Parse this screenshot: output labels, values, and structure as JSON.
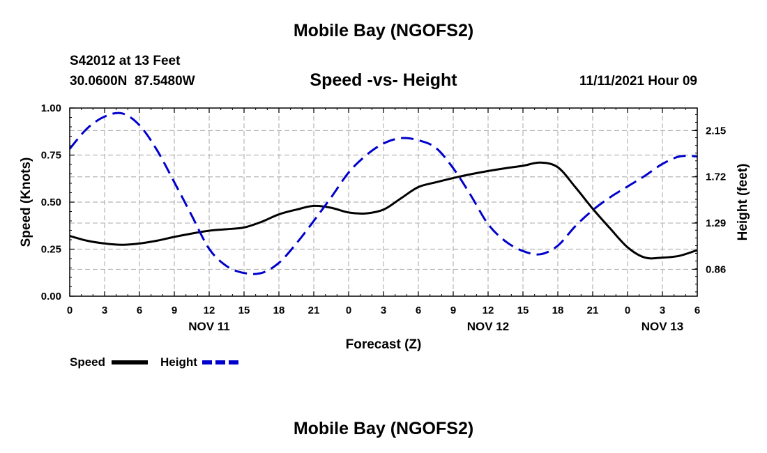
{
  "header": {
    "top_title": "Mobile Bay (NGOFS2)",
    "station": "S42012 at 13 Feet",
    "coords": "30.0600N  87.5480W",
    "plot_title": "Speed -vs- Height",
    "datetime": "11/11/2021 Hour 09"
  },
  "footer": {
    "bottom_title": "Mobile Bay (NGOFS2)"
  },
  "chart_data": {
    "type": "line",
    "title": "Speed -vs- Height",
    "xlabel": "Forecast (Z)",
    "ylabel_left": "Speed (Knots)",
    "ylabel_right": "Height (feet)",
    "x_range_hours": [
      0,
      54
    ],
    "ylim_left": [
      0,
      1.0
    ],
    "ylim_right": [
      0.61,
      2.36
    ],
    "x_ticks": [
      {
        "h": 0,
        "label": "0"
      },
      {
        "h": 3,
        "label": "3"
      },
      {
        "h": 6,
        "label": "6"
      },
      {
        "h": 9,
        "label": "9"
      },
      {
        "h": 12,
        "label": "12"
      },
      {
        "h": 15,
        "label": "15"
      },
      {
        "h": 18,
        "label": "18"
      },
      {
        "h": 21,
        "label": "21"
      },
      {
        "h": 24,
        "label": "0"
      },
      {
        "h": 27,
        "label": "3"
      },
      {
        "h": 30,
        "label": "6"
      },
      {
        "h": 33,
        "label": "9"
      },
      {
        "h": 36,
        "label": "12"
      },
      {
        "h": 39,
        "label": "15"
      },
      {
        "h": 42,
        "label": "18"
      },
      {
        "h": 45,
        "label": "21"
      },
      {
        "h": 48,
        "label": "0"
      },
      {
        "h": 51,
        "label": "3"
      },
      {
        "h": 54,
        "label": "6"
      }
    ],
    "date_labels": [
      {
        "h": 12,
        "label": "NOV 11"
      },
      {
        "h": 36,
        "label": "NOV 12"
      },
      {
        "h": 51,
        "label": "NOV 13"
      }
    ],
    "y_ticks_left": [
      "0.00",
      "0.25",
      "0.50",
      "0.75",
      "1.00"
    ],
    "y_ticks_right": [
      "0.86",
      "1.29",
      "1.72",
      "2.15"
    ],
    "grid": true,
    "legend": {
      "position": "bottom-left",
      "speed_label": "Speed",
      "height_label": "Height"
    },
    "series": [
      {
        "name": "Speed",
        "axis": "left",
        "color": "#000000",
        "dash": "solid",
        "points": [
          [
            0,
            0.32
          ],
          [
            1.5,
            0.295
          ],
          [
            3,
            0.28
          ],
          [
            4.5,
            0.273
          ],
          [
            6,
            0.28
          ],
          [
            7.5,
            0.295
          ],
          [
            9,
            0.315
          ],
          [
            10.5,
            0.333
          ],
          [
            12,
            0.348
          ],
          [
            13.5,
            0.356
          ],
          [
            15,
            0.365
          ],
          [
            16.5,
            0.395
          ],
          [
            18,
            0.435
          ],
          [
            19.5,
            0.46
          ],
          [
            21,
            0.48
          ],
          [
            22.5,
            0.47
          ],
          [
            24,
            0.445
          ],
          [
            25.5,
            0.44
          ],
          [
            27,
            0.46
          ],
          [
            28.5,
            0.52
          ],
          [
            30,
            0.58
          ],
          [
            31.5,
            0.605
          ],
          [
            33,
            0.628
          ],
          [
            34.5,
            0.648
          ],
          [
            36,
            0.665
          ],
          [
            37.5,
            0.68
          ],
          [
            39,
            0.693
          ],
          [
            40.5,
            0.71
          ],
          [
            42,
            0.685
          ],
          [
            43.5,
            0.58
          ],
          [
            45,
            0.465
          ],
          [
            46.5,
            0.36
          ],
          [
            48,
            0.26
          ],
          [
            49.5,
            0.205
          ],
          [
            51,
            0.205
          ],
          [
            52.5,
            0.215
          ],
          [
            54,
            0.245
          ]
        ]
      },
      {
        "name": "Height",
        "axis": "right",
        "color": "#0000cc",
        "dash": "dashed",
        "points": [
          [
            0,
            1.98
          ],
          [
            1.5,
            2.17
          ],
          [
            3,
            2.28
          ],
          [
            4.5,
            2.31
          ],
          [
            6,
            2.2
          ],
          [
            7.5,
            1.97
          ],
          [
            9,
            1.67
          ],
          [
            10.5,
            1.36
          ],
          [
            12,
            1.05
          ],
          [
            13.5,
            0.89
          ],
          [
            15,
            0.826
          ],
          [
            16.5,
            0.826
          ],
          [
            18,
            0.92
          ],
          [
            19.5,
            1.1
          ],
          [
            21,
            1.31
          ],
          [
            22.5,
            1.53
          ],
          [
            24,
            1.76
          ],
          [
            25.5,
            1.92
          ],
          [
            27,
            2.03
          ],
          [
            28.5,
            2.08
          ],
          [
            30,
            2.06
          ],
          [
            31.5,
            1.99
          ],
          [
            33,
            1.8
          ],
          [
            34.5,
            1.55
          ],
          [
            36,
            1.28
          ],
          [
            37.5,
            1.12
          ],
          [
            39,
            1.03
          ],
          [
            40.5,
            1.0
          ],
          [
            42,
            1.08
          ],
          [
            43.5,
            1.26
          ],
          [
            45,
            1.41
          ],
          [
            46.5,
            1.53
          ],
          [
            48,
            1.63
          ],
          [
            49.5,
            1.73
          ],
          [
            51,
            1.84
          ],
          [
            52.5,
            1.91
          ],
          [
            54,
            1.91
          ]
        ]
      }
    ]
  }
}
